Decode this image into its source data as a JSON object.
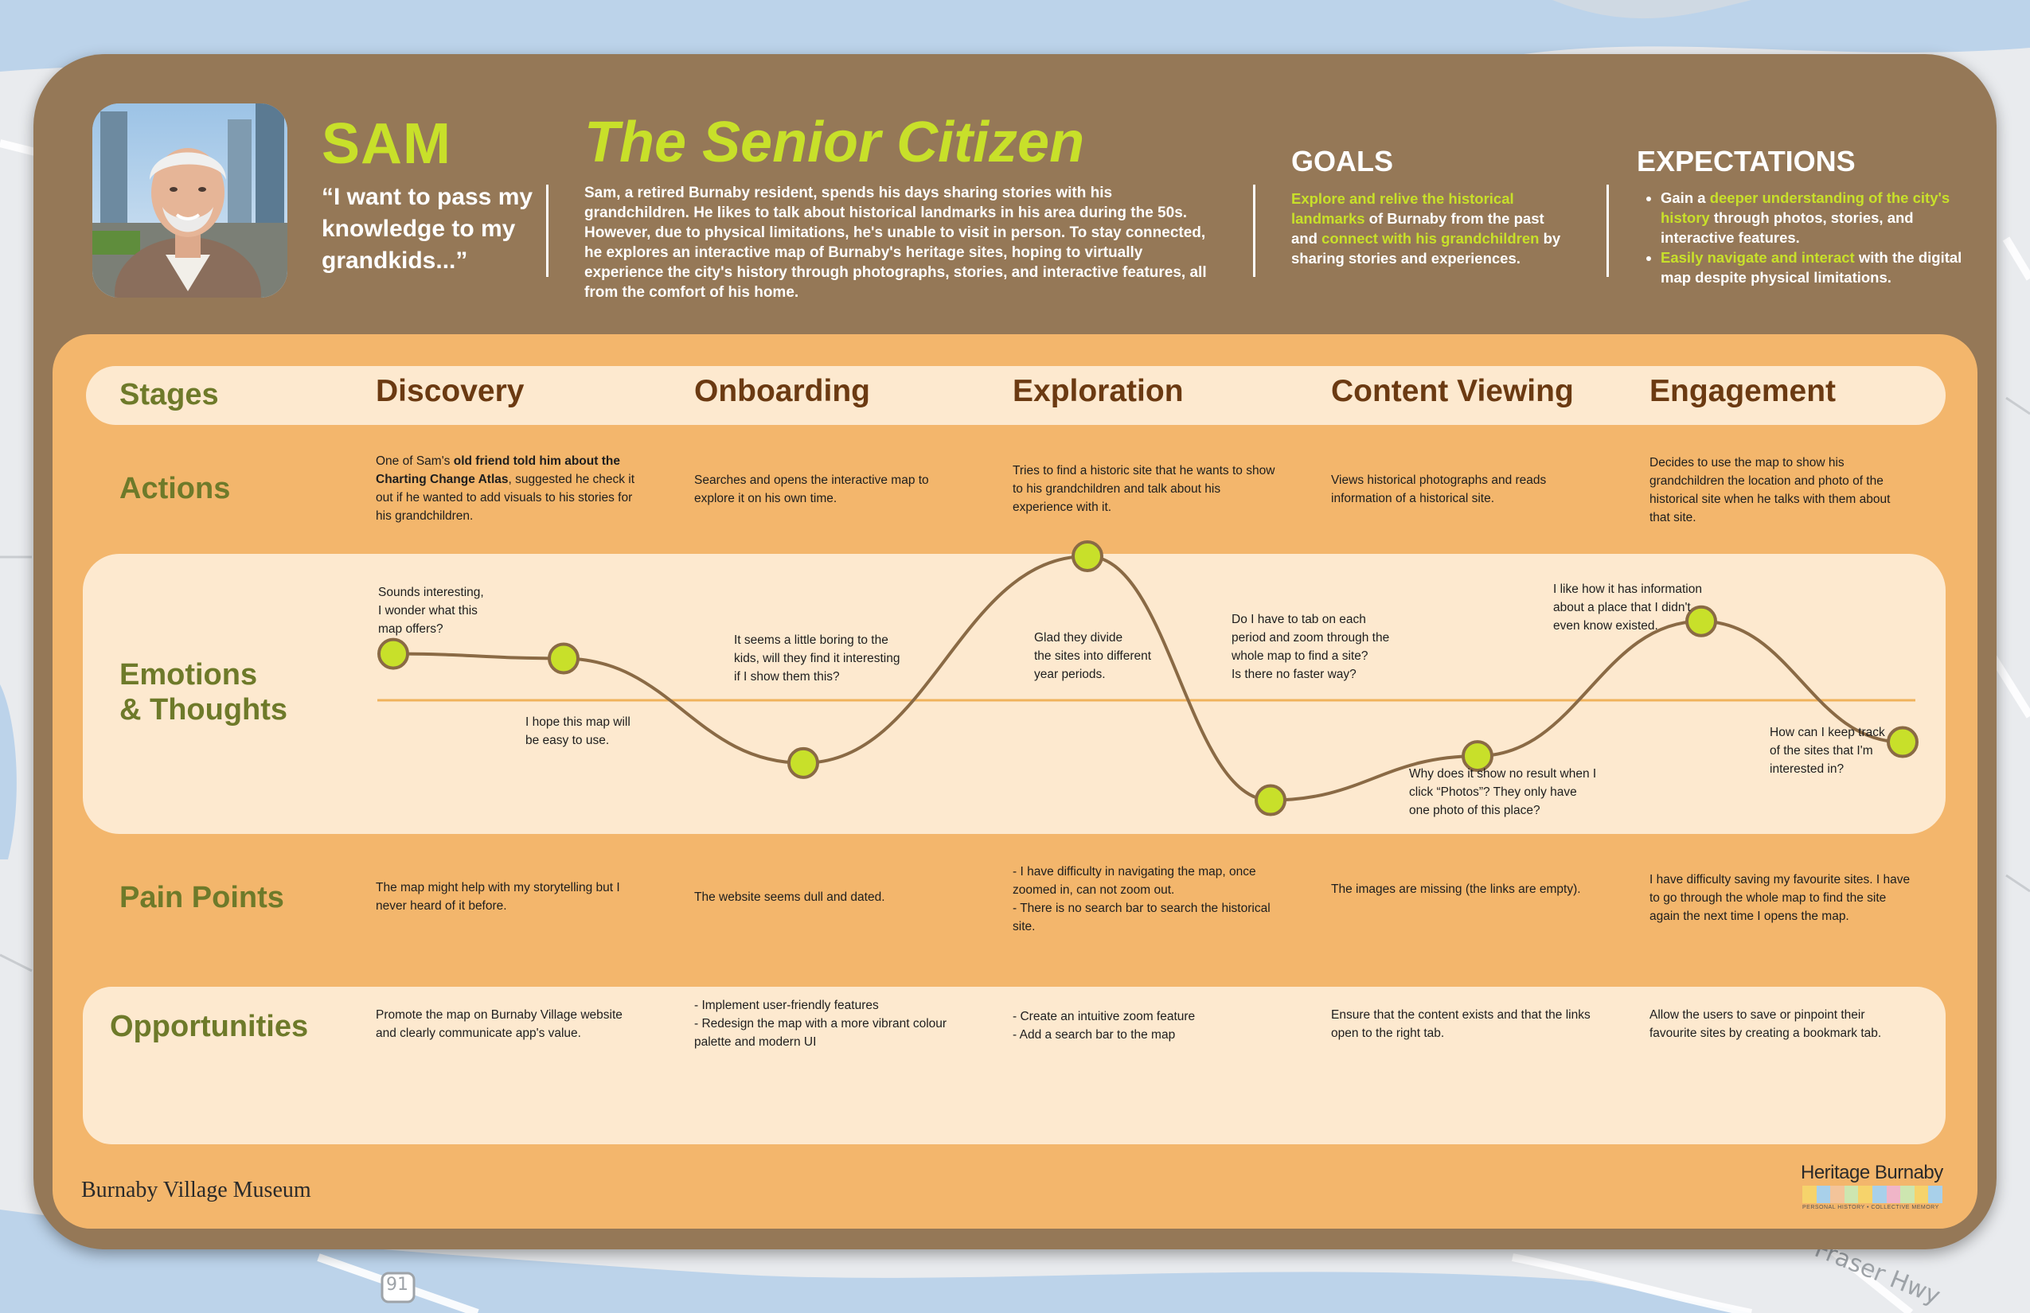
{
  "persona": {
    "name": "SAM",
    "quote": "“I want to pass my knowledge to my grandkids...”",
    "role": "The Senior Citizen",
    "bio": "Sam, a retired Burnaby resident, spends his days sharing stories with his grandchildren. He likes to talk about historical landmarks in his area during the 50s. However, due to physical limitations, he's unable to visit in person. To stay connected, he explores an interactive map of Burnaby's heritage sites, hoping to virtually experience the city's history through photographs, stories, and interactive features, all from the comfort of his home.",
    "goals_title": "GOALS",
    "goals": {
      "p1": "Explore and relive the historical landmarks",
      "p2": " of Burnaby from the past and ",
      "p3": "connect with his grandchildren",
      "p4": " by sharing stories and experiences."
    },
    "expectations_title": "EXPECTATIONS",
    "expectations": [
      {
        "pre": "Gain a ",
        "hl": "deeper understanding of the city's history",
        "post": " through photos, stories, and interactive features."
      },
      {
        "pre": "",
        "hl": "Easily navigate and interact",
        "post": " with the digital map despite physical limitations."
      }
    ]
  },
  "rows": {
    "stages": "Stages",
    "actions": "Actions",
    "emotions": "Emotions\n& Thoughts",
    "pain_points": "Pain Points",
    "opportunities": "Opportunities"
  },
  "stages": [
    "Discovery",
    "Onboarding",
    "Exploration",
    "Content Viewing",
    "Engagement"
  ],
  "actions": [
    {
      "pre": "One of Sam's ",
      "bold": "old friend told him about the Charting Change Atlas",
      "post": ", suggested he check it out if he wanted to add visuals to his stories for his grandchildren."
    },
    {
      "pre": "Searches and opens the interactive map to explore it on his own time.",
      "bold": "",
      "post": ""
    },
    {
      "pre": "Tries to find a historic site that he wants to show to his grandchildren and talk about his experience with it.",
      "bold": "",
      "post": ""
    },
    {
      "pre": "Views historical photographs and reads information of a historical site.",
      "bold": "",
      "post": ""
    },
    {
      "pre": "Decides to use the map to show his grandchildren the location and photo of the historical site when he talks with them about that site.",
      "bold": "",
      "post": ""
    }
  ],
  "emotions": {
    "scale": {
      "min": -1,
      "max": 1,
      "neutral": 0
    },
    "points": [
      {
        "stage": "Discovery",
        "value": 0.2,
        "note": "Sounds interesting,\nI wonder what this\nmap offers?"
      },
      {
        "stage": "Discovery",
        "value": 0.18,
        "note": "I hope this map will\nbe easy to use."
      },
      {
        "stage": "Onboarding",
        "value": -0.27,
        "note": "It seems a little boring to the\nkids, will they find it interesting\nif I show them this?"
      },
      {
        "stage": "Exploration",
        "value": 0.62,
        "note": "Glad they divide\nthe sites into different\nyear periods."
      },
      {
        "stage": "Exploration",
        "value": -0.43,
        "note": "Do I have to tab on each\nperiod and zoom through the\nwhole map to find a site?\nIs there no faster way?"
      },
      {
        "stage": "Content Viewing",
        "value": -0.24,
        "note": "Why does it show no result when I\nclick “Photos”? They only have\none photo of this place?"
      },
      {
        "stage": "Engagement",
        "value": 0.34,
        "note": "I like how it has information\nabout a place that I didn't\neven know existed."
      },
      {
        "stage": "Engagement",
        "value": -0.18,
        "note": "How can I keep track\nof the sites that I'm\ninterested in?"
      }
    ]
  },
  "pain_points": [
    "The map might help with my storytelling but I never heard of it before.",
    "The website seems dull and dated.",
    "- I have difficulty in navigating the map, once zoomed in, can not zoom out.\n- There is no search bar to search the historical site.",
    "The images are missing (the links are empty).",
    "I have difficulty saving my favourite sites. I have to go through the whole map to find the site again the next time I opens the map."
  ],
  "opportunities": [
    "Promote the map on Burnaby Village website and clearly communicate app's value.",
    "- Implement user-friendly features\n- Redesign the map with a more vibrant colour palette and modern UI",
    "- Create an intuitive zoom feature\n- Add a search bar to the map",
    "Ensure that the content exists and that the links open to the right tab.",
    "Allow the users to save or pinpoint their favourite sites by creating a bookmark tab."
  ],
  "logos": {
    "museum": "Burnaby Village Museum",
    "heritage": "Heritage Burnaby",
    "heritage_tagline": "PERSONAL HISTORY • COLLECTIVE MEMORY"
  },
  "map_labels": [
    "Fraser Hwy",
    "91"
  ],
  "colors": {
    "card": "#957857",
    "panel": "#f3b66c",
    "band": "#fde9cf",
    "accent": "#c8e02a",
    "stage_text": "#6b3a12",
    "row_label": "#6e7a2a",
    "curve": "#8a6a45"
  }
}
